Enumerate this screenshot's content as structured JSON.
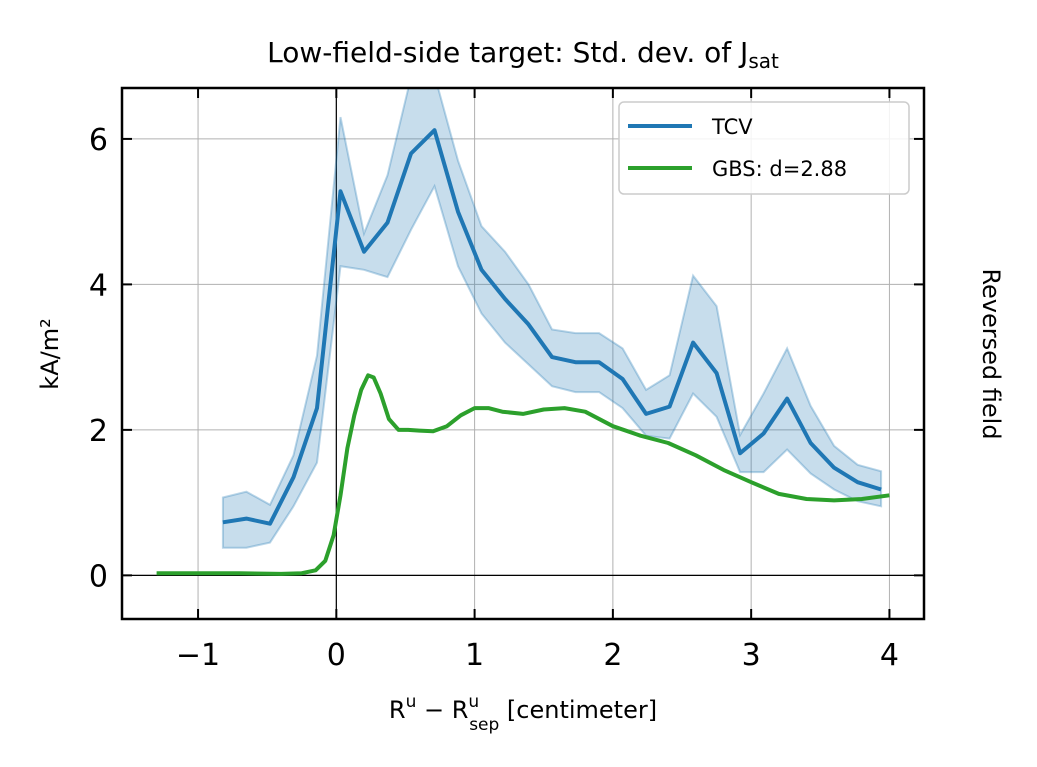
{
  "chart_data": {
    "type": "line",
    "title": {
      "main": "Low-field-side target: Std. dev. of J",
      "sub": "sat"
    },
    "xlabel": {
      "r": "R",
      "sup1": "u",
      "minus": " − R",
      "sup2": "u",
      "sub2": "sep",
      "unit": " [centimeter]"
    },
    "ylabel": "kA/m²",
    "right_label": "Reversed field",
    "xlim": [
      -1.55,
      4.25
    ],
    "ylim": [
      -0.6,
      6.7
    ],
    "xticks": [
      -1,
      0,
      1,
      2,
      3,
      4
    ],
    "xtick_labels": [
      "−1",
      "0",
      "1",
      "2",
      "3",
      "4"
    ],
    "yticks": [
      0,
      2,
      4,
      6
    ],
    "ytick_labels": [
      "0",
      "2",
      "4",
      "6"
    ],
    "grid": true,
    "legend_position": "top-right",
    "colors": {
      "tcv": "#1f77b4",
      "tcv_band": "#1f77b4",
      "gbs": "#2ca02c"
    },
    "series": [
      {
        "name": "TCV",
        "x": [
          -0.82,
          -0.65,
          -0.48,
          -0.31,
          -0.14,
          0.03,
          0.2,
          0.37,
          0.54,
          0.71,
          0.88,
          1.05,
          1.22,
          1.39,
          1.56,
          1.73,
          1.9,
          2.07,
          2.24,
          2.41,
          2.58,
          2.75,
          2.92,
          3.09,
          3.26,
          3.43,
          3.6,
          3.77,
          3.94
        ],
        "y": [
          0.73,
          0.78,
          0.71,
          1.35,
          2.3,
          5.28,
          4.45,
          4.85,
          5.8,
          6.12,
          5.0,
          4.2,
          3.8,
          3.45,
          3.0,
          2.93,
          2.93,
          2.7,
          2.22,
          2.32,
          3.2,
          2.78,
          1.68,
          1.95,
          2.43,
          1.82,
          1.48,
          1.28,
          1.18
        ],
        "lower": [
          0.38,
          0.38,
          0.45,
          0.95,
          1.55,
          4.25,
          4.2,
          4.1,
          4.75,
          5.35,
          4.25,
          3.6,
          3.2,
          2.9,
          2.6,
          2.52,
          2.52,
          2.3,
          1.92,
          1.88,
          2.5,
          2.18,
          1.42,
          1.42,
          1.73,
          1.4,
          1.18,
          1.02,
          0.95
        ],
        "upper": [
          1.07,
          1.15,
          0.97,
          1.65,
          3.02,
          6.3,
          4.7,
          5.5,
          6.85,
          6.88,
          5.7,
          4.8,
          4.45,
          4.0,
          3.38,
          3.33,
          3.33,
          3.12,
          2.55,
          2.75,
          4.12,
          3.7,
          1.93,
          2.5,
          3.12,
          2.33,
          1.78,
          1.52,
          1.43
        ]
      },
      {
        "name": "GBS: d=2.88",
        "x": [
          -1.3,
          -1.0,
          -0.7,
          -0.4,
          -0.25,
          -0.15,
          -0.08,
          -0.02,
          0.03,
          0.08,
          0.13,
          0.18,
          0.23,
          0.27,
          0.32,
          0.38,
          0.45,
          0.52,
          0.6,
          0.7,
          0.8,
          0.9,
          1.0,
          1.1,
          1.2,
          1.35,
          1.5,
          1.65,
          1.8,
          2.0,
          2.2,
          2.4,
          2.6,
          2.8,
          3.0,
          3.2,
          3.4,
          3.6,
          3.8,
          4.0
        ],
        "y": [
          0.03,
          0.03,
          0.03,
          0.02,
          0.03,
          0.07,
          0.2,
          0.55,
          1.1,
          1.75,
          2.2,
          2.55,
          2.75,
          2.72,
          2.5,
          2.15,
          2.0,
          2.0,
          1.99,
          1.98,
          2.05,
          2.2,
          2.3,
          2.3,
          2.25,
          2.22,
          2.28,
          2.3,
          2.25,
          2.05,
          1.92,
          1.82,
          1.65,
          1.45,
          1.28,
          1.12,
          1.05,
          1.03,
          1.05,
          1.1
        ]
      }
    ]
  }
}
